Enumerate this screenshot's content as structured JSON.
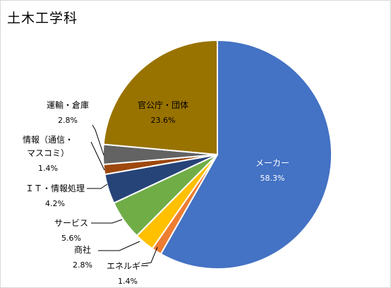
{
  "chart_data": {
    "type": "pie",
    "title": "土木工学科",
    "slices": [
      {
        "name": "メーカー",
        "value": 58.3,
        "label": "58.3%",
        "color": "#4472C4"
      },
      {
        "name": "エネルギー",
        "value": 1.4,
        "label": "1.4%",
        "color": "#ED7D31"
      },
      {
        "name": "商社",
        "value": 2.8,
        "label": "2.8%",
        "color": "#FFC000"
      },
      {
        "name": "サービス",
        "value": 5.6,
        "label": "5.6%",
        "color": "#70AD47"
      },
      {
        "name": "ＩＴ・情報処理",
        "value": 4.2,
        "label": "4.2%",
        "color": "#264478"
      },
      {
        "name": "情報（通信・マスコミ）",
        "name_lines": [
          "情報（通信・",
          "マスコミ）"
        ],
        "value": 1.4,
        "label": "1.4%",
        "color": "#9E480E"
      },
      {
        "name": "運輸・倉庫",
        "value": 2.8,
        "label": "2.8%",
        "color": "#636363"
      },
      {
        "name": "官公庁・団体",
        "value": 23.6,
        "label": "23.6%",
        "color": "#997300"
      }
    ]
  }
}
